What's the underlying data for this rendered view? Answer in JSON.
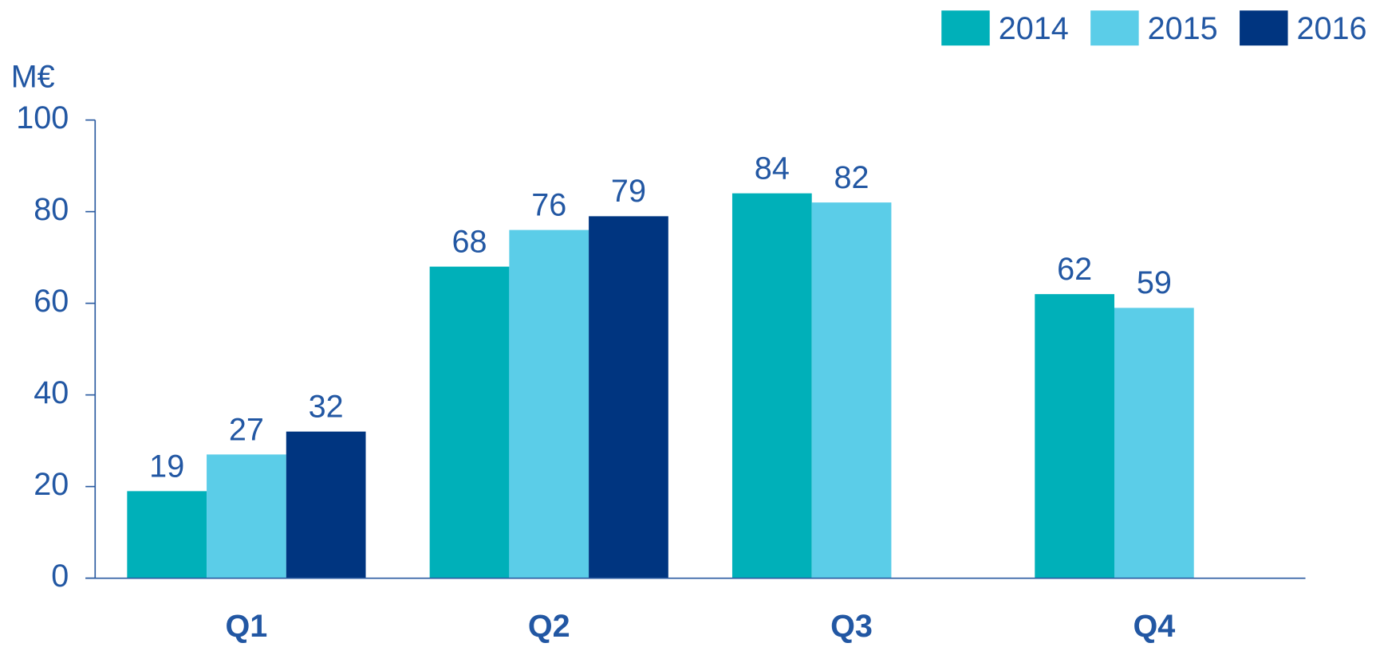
{
  "chart_data": {
    "type": "bar",
    "y_label": "M€",
    "categories": [
      "Q1",
      "Q2",
      "Q3",
      "Q4"
    ],
    "series": [
      {
        "name": "2014",
        "color": "#00b0b9",
        "values": [
          19,
          68,
          84,
          62
        ]
      },
      {
        "name": "2015",
        "color": "#5bcde8",
        "values": [
          27,
          76,
          82,
          59
        ]
      },
      {
        "name": "2016",
        "color": "#003580",
        "values": [
          32,
          79,
          null,
          null
        ]
      }
    ],
    "ylim": [
      0,
      100
    ],
    "yticks": [
      0,
      20,
      40,
      60,
      80,
      100
    ],
    "grid": false,
    "legend": "top-right"
  }
}
